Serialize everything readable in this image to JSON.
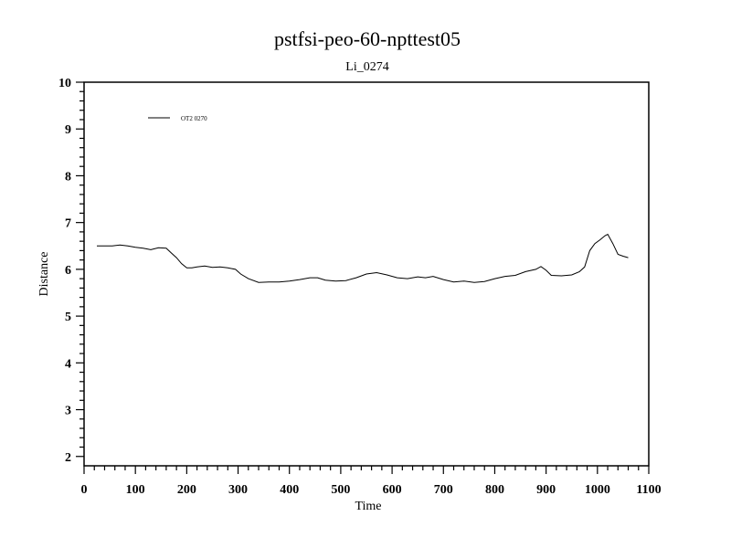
{
  "chart_data": {
    "type": "line",
    "title": "pstfsi-peo-60-npttest05",
    "subtitle": "Li_0274",
    "xlabel": "Time",
    "ylabel": "Distance",
    "xlim": [
      0,
      1100
    ],
    "ylim": [
      1.8,
      10
    ],
    "x_ticks": [
      0,
      100,
      200,
      300,
      400,
      500,
      600,
      700,
      800,
      900,
      1000,
      1100
    ],
    "y_ticks": [
      2,
      3,
      4,
      5,
      6,
      7,
      8,
      9,
      10
    ],
    "grid": false,
    "legend_position": "top-left",
    "series": [
      {
        "name": "OT2 0270",
        "color": "#000000",
        "x": [
          25,
          40,
          55,
          70,
          85,
          100,
          115,
          130,
          145,
          160,
          170,
          180,
          190,
          200,
          210,
          220,
          235,
          250,
          265,
          280,
          295,
          305,
          320,
          340,
          360,
          380,
          400,
          420,
          440,
          455,
          470,
          490,
          510,
          530,
          550,
          570,
          590,
          610,
          630,
          650,
          665,
          680,
          700,
          720,
          740,
          760,
          780,
          800,
          820,
          840,
          860,
          880,
          890,
          900,
          910,
          930,
          950,
          965,
          975,
          985,
          995,
          1005,
          1015,
          1020,
          1030,
          1040,
          1050,
          1060
        ],
        "y": [
          6.5,
          6.5,
          6.5,
          6.52,
          6.5,
          6.47,
          6.45,
          6.42,
          6.46,
          6.45,
          6.35,
          6.25,
          6.12,
          6.03,
          6.03,
          6.05,
          6.07,
          6.04,
          6.05,
          6.03,
          6.0,
          5.9,
          5.8,
          5.72,
          5.73,
          5.73,
          5.75,
          5.78,
          5.82,
          5.82,
          5.77,
          5.75,
          5.76,
          5.82,
          5.9,
          5.93,
          5.88,
          5.82,
          5.8,
          5.84,
          5.82,
          5.85,
          5.78,
          5.73,
          5.75,
          5.72,
          5.74,
          5.8,
          5.85,
          5.87,
          5.95,
          6.0,
          6.06,
          5.98,
          5.87,
          5.86,
          5.88,
          5.95,
          6.05,
          6.4,
          6.55,
          6.63,
          6.72,
          6.75,
          6.55,
          6.32,
          6.28,
          6.25
        ]
      }
    ]
  }
}
